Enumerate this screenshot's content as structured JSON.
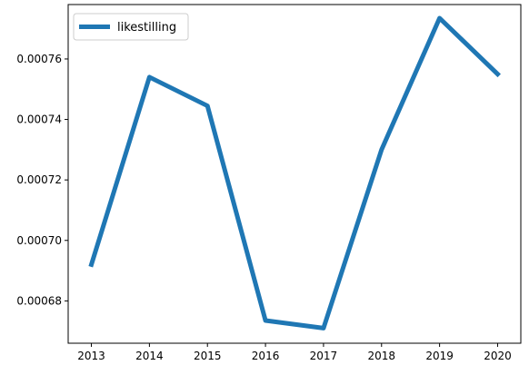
{
  "chart_data": {
    "type": "line",
    "title": "",
    "xlabel": "",
    "ylabel": "",
    "x": [
      2013,
      2014,
      2015,
      2016,
      2017,
      2018,
      2019,
      2020
    ],
    "series": [
      {
        "name": "likestilling",
        "color": "#1f77b4",
        "values": [
          0.000692,
          0.000754,
          0.0007445,
          0.0006735,
          0.000671,
          0.00073,
          0.0007735,
          0.000755
        ]
      }
    ],
    "xlim": [
      2012.6,
      2020.4
    ],
    "ylim": [
      0.000666,
      0.000778
    ],
    "yticks": [
      "0.00068",
      "0.00070",
      "0.00072",
      "0.00074",
      "0.00076"
    ],
    "xticks": [
      "2013",
      "2014",
      "2015",
      "2016",
      "2017",
      "2018",
      "2019",
      "2020"
    ],
    "grid": false,
    "legend": "upper left"
  }
}
